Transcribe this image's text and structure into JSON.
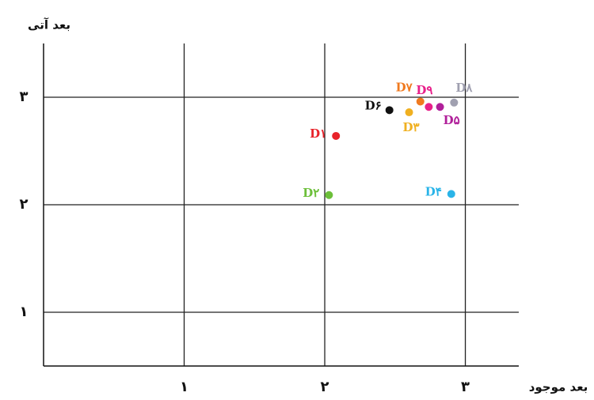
{
  "chart_data": {
    "type": "scatter",
    "x_label": "بعد موجود",
    "y_label": "بعد آتی",
    "xlim": [
      0,
      3.38
    ],
    "ylim": [
      0.5,
      3.5
    ],
    "xticks": [
      {
        "value": 1,
        "label": "۱"
      },
      {
        "value": 2,
        "label": "۲"
      },
      {
        "value": 3,
        "label": "۳"
      }
    ],
    "yticks": [
      {
        "value": 1,
        "label": "۱"
      },
      {
        "value": 2,
        "label": "۲"
      },
      {
        "value": 3,
        "label": "۳"
      }
    ],
    "grid": true,
    "series": [
      {
        "name": "D۱",
        "color": "#e8232a",
        "x": [
          2.08
        ],
        "values": [
          2.64
        ]
      },
      {
        "name": "D۲",
        "color": "#6cbf3a",
        "x": [
          2.03
        ],
        "values": [
          2.09
        ]
      },
      {
        "name": "D۳",
        "color": "#f0b020",
        "x": [
          2.6
        ],
        "values": [
          2.86
        ]
      },
      {
        "name": "D۴",
        "color": "#2ab4e8",
        "x": [
          2.9
        ],
        "values": [
          2.1
        ]
      },
      {
        "name": "D۵",
        "color": "#b0209a",
        "x": [
          2.82
        ],
        "values": [
          2.91
        ]
      },
      {
        "name": "D۶",
        "color": "#111111",
        "x": [
          2.46
        ],
        "values": [
          2.88
        ]
      },
      {
        "name": "D۷",
        "color": "#f07a20",
        "x": [
          2.68
        ],
        "values": [
          2.96
        ]
      },
      {
        "name": "D۸",
        "color": "#a0a0b0",
        "x": [
          2.92
        ],
        "values": [
          2.95
        ]
      },
      {
        "name": "D۹",
        "color": "#e8208a",
        "x": [
          2.74
        ],
        "values": [
          2.91
        ]
      }
    ]
  }
}
